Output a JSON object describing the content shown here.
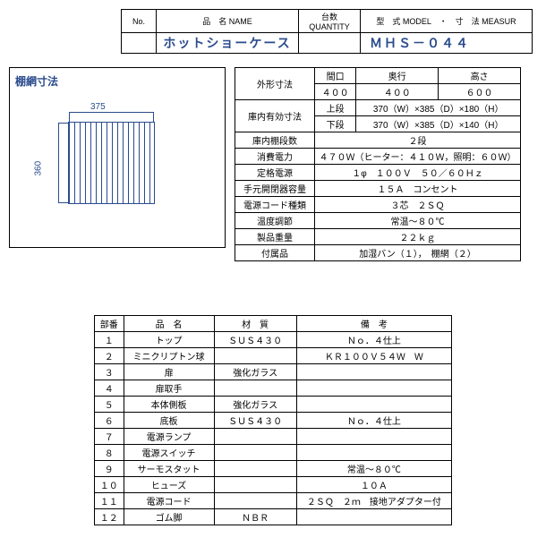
{
  "header": {
    "labels": {
      "no": "No.",
      "name": "品　名 NAME",
      "qty": "台数 QUANTITY",
      "model": "型　式 MODEL　・　寸　法 MEASUR"
    },
    "values": {
      "no": "",
      "name": "ホットショーケース",
      "qty": "",
      "model": "ＭＨＳ－０４４"
    }
  },
  "shelf": {
    "title": "棚網寸法",
    "width_label": "375",
    "height_label": "360"
  },
  "spec": {
    "dim_label": "外形寸法",
    "dim_cols": [
      "間口",
      "奥行",
      "高さ"
    ],
    "dim_vals": [
      "４００",
      "４００",
      "６００"
    ],
    "inner_label": "庫内有効寸法",
    "inner_rows": [
      {
        "tier": "上段",
        "val": "370（W）×385（D）×180（H）"
      },
      {
        "tier": "下段",
        "val": "370（W）×385（D）×140（H）"
      }
    ],
    "rows": [
      {
        "label": "庫内棚段数",
        "value": "２段"
      },
      {
        "label": "消費電力",
        "value": "４７０Ｗ（ヒーター：４１０Ｗ，照明：６０Ｗ）"
      },
      {
        "label": "定格電源",
        "value": "１φ　１００Ｖ　５０／６０Ｈｚ"
      },
      {
        "label": "手元開閉器容量",
        "value": "１５Ａ　コンセント"
      },
      {
        "label": "電源コード種類",
        "value": "３芯　２ＳＱ"
      },
      {
        "label": "温度調節",
        "value": "常温～８０℃"
      },
      {
        "label": "製品重量",
        "value": "２２ｋｇ"
      },
      {
        "label": "付属品",
        "value": "加湿バン（１），　棚網（２）"
      }
    ]
  },
  "parts": {
    "header": [
      "部番",
      "品　名",
      "材　質",
      "備　考"
    ],
    "rows": [
      [
        "１",
        "トップ",
        "ＳＵＳ４３０",
        "Ｎｏ．４仕上"
      ],
      [
        "２",
        "ミニクリプトン球",
        "",
        "ＫＲ１００Ｖ５４Ｗ　Ｗ"
      ],
      [
        "３",
        "扉",
        "強化ガラス",
        ""
      ],
      [
        "４",
        "扉取手",
        "",
        ""
      ],
      [
        "５",
        "本体側板",
        "強化ガラス",
        ""
      ],
      [
        "６",
        "底板",
        "ＳＵＳ４３０",
        "Ｎｏ．４仕上"
      ],
      [
        "７",
        "電源ランプ",
        "",
        ""
      ],
      [
        "８",
        "電源スイッチ",
        "",
        ""
      ],
      [
        "９",
        "サーモスタット",
        "",
        "常温～８０℃"
      ],
      [
        "１０",
        "ヒューズ",
        "",
        "１０Ａ"
      ],
      [
        "１１",
        "電源コード",
        "",
        "２ＳＱ　２ｍ　接地アダプター付"
      ],
      [
        "１２",
        "ゴム脚",
        "ＮＢＲ",
        ""
      ]
    ]
  }
}
